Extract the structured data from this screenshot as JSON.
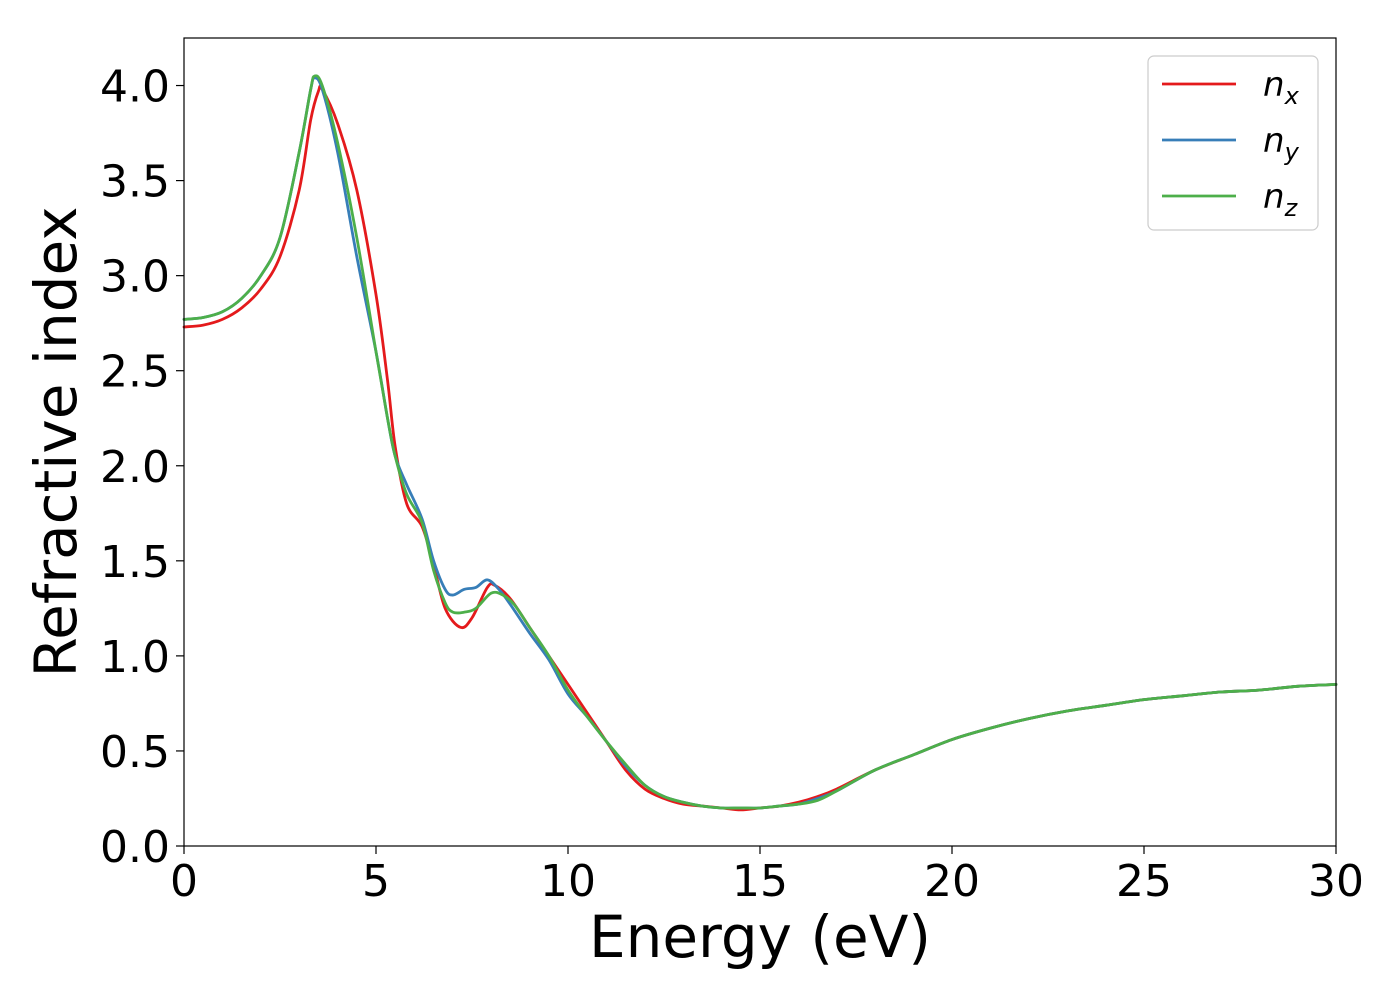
{
  "chart_data": {
    "type": "line",
    "title": "",
    "xlabel": "Energy (eV)",
    "ylabel": "Refractive index",
    "xlim": [
      0,
      30
    ],
    "ylim": [
      0,
      4.25
    ],
    "xticks": [
      0,
      5,
      10,
      15,
      20,
      25,
      30
    ],
    "xtick_labels": [
      "0",
      "5",
      "10",
      "15",
      "20",
      "25",
      "30"
    ],
    "yticks": [
      0.0,
      0.5,
      1.0,
      1.5,
      2.0,
      2.5,
      3.0,
      3.5,
      4.0
    ],
    "ytick_labels": [
      "0.0",
      "0.5",
      "1.0",
      "1.5",
      "2.0",
      "2.5",
      "3.0",
      "3.5",
      "4.0"
    ],
    "grid": false,
    "legend_position": "top-right",
    "series": [
      {
        "name": "n_x",
        "label_main": "n",
        "label_sub": "x",
        "color": "#e41a1c",
        "points": [
          [
            0,
            2.73
          ],
          [
            0.5,
            2.74
          ],
          [
            1,
            2.77
          ],
          [
            1.5,
            2.83
          ],
          [
            2,
            2.93
          ],
          [
            2.5,
            3.1
          ],
          [
            3,
            3.45
          ],
          [
            3.3,
            3.82
          ],
          [
            3.5,
            3.97
          ],
          [
            3.6,
            3.98
          ],
          [
            4,
            3.8
          ],
          [
            4.5,
            3.45
          ],
          [
            5,
            2.9
          ],
          [
            5.3,
            2.45
          ],
          [
            5.5,
            2.1
          ],
          [
            5.8,
            1.8
          ],
          [
            6.2,
            1.68
          ],
          [
            6.5,
            1.48
          ],
          [
            6.8,
            1.25
          ],
          [
            7.2,
            1.15
          ],
          [
            7.5,
            1.2
          ],
          [
            7.9,
            1.36
          ],
          [
            8.1,
            1.37
          ],
          [
            8.5,
            1.3
          ],
          [
            9,
            1.15
          ],
          [
            9.5,
            1.0
          ],
          [
            10,
            0.85
          ],
          [
            10.5,
            0.7
          ],
          [
            11,
            0.55
          ],
          [
            11.5,
            0.4
          ],
          [
            12,
            0.3
          ],
          [
            12.5,
            0.25
          ],
          [
            13,
            0.22
          ],
          [
            13.5,
            0.21
          ],
          [
            14,
            0.2
          ],
          [
            14.5,
            0.19
          ],
          [
            15,
            0.2
          ],
          [
            15.5,
            0.21
          ],
          [
            16,
            0.23
          ],
          [
            16.5,
            0.26
          ],
          [
            17,
            0.3
          ],
          [
            18,
            0.4
          ],
          [
            19,
            0.48
          ],
          [
            20,
            0.56
          ],
          [
            21,
            0.62
          ],
          [
            22,
            0.67
          ],
          [
            23,
            0.71
          ],
          [
            24,
            0.74
          ],
          [
            25,
            0.77
          ],
          [
            26,
            0.79
          ],
          [
            27,
            0.81
          ],
          [
            28,
            0.82
          ],
          [
            29,
            0.84
          ],
          [
            30,
            0.85
          ]
        ]
      },
      {
        "name": "n_y",
        "label_main": "n",
        "label_sub": "y",
        "color": "#377eb8",
        "points": [
          [
            0,
            2.77
          ],
          [
            0.5,
            2.78
          ],
          [
            1,
            2.81
          ],
          [
            1.5,
            2.88
          ],
          [
            2,
            3.0
          ],
          [
            2.5,
            3.2
          ],
          [
            3,
            3.65
          ],
          [
            3.3,
            3.98
          ],
          [
            3.4,
            4.04
          ],
          [
            3.6,
            3.98
          ],
          [
            4,
            3.65
          ],
          [
            4.5,
            3.1
          ],
          [
            5,
            2.6
          ],
          [
            5.3,
            2.25
          ],
          [
            5.5,
            2.05
          ],
          [
            5.8,
            1.9
          ],
          [
            6.2,
            1.72
          ],
          [
            6.5,
            1.5
          ],
          [
            6.8,
            1.35
          ],
          [
            7,
            1.32
          ],
          [
            7.3,
            1.35
          ],
          [
            7.6,
            1.36
          ],
          [
            7.9,
            1.4
          ],
          [
            8.2,
            1.35
          ],
          [
            8.5,
            1.27
          ],
          [
            9,
            1.12
          ],
          [
            9.5,
            0.98
          ],
          [
            10,
            0.8
          ],
          [
            10.5,
            0.68
          ],
          [
            11,
            0.55
          ],
          [
            11.5,
            0.42
          ],
          [
            12,
            0.32
          ],
          [
            12.5,
            0.26
          ],
          [
            13,
            0.23
          ],
          [
            13.5,
            0.21
          ],
          [
            14,
            0.2
          ],
          [
            14.5,
            0.2
          ],
          [
            15,
            0.2
          ],
          [
            15.5,
            0.21
          ],
          [
            16,
            0.22
          ],
          [
            16.5,
            0.25
          ],
          [
            17,
            0.29
          ],
          [
            18,
            0.4
          ],
          [
            19,
            0.48
          ],
          [
            20,
            0.56
          ],
          [
            21,
            0.62
          ],
          [
            22,
            0.67
          ],
          [
            23,
            0.71
          ],
          [
            24,
            0.74
          ],
          [
            25,
            0.77
          ],
          [
            26,
            0.79
          ],
          [
            27,
            0.81
          ],
          [
            28,
            0.82
          ],
          [
            29,
            0.84
          ],
          [
            30,
            0.85
          ]
        ]
      },
      {
        "name": "n_z",
        "label_main": "n",
        "label_sub": "z",
        "color": "#4daf4a",
        "points": [
          [
            0,
            2.77
          ],
          [
            0.5,
            2.78
          ],
          [
            1,
            2.81
          ],
          [
            1.5,
            2.88
          ],
          [
            2,
            3.0
          ],
          [
            2.5,
            3.2
          ],
          [
            3,
            3.65
          ],
          [
            3.3,
            3.98
          ],
          [
            3.4,
            4.05
          ],
          [
            3.6,
            4.0
          ],
          [
            4,
            3.7
          ],
          [
            4.5,
            3.2
          ],
          [
            5,
            2.6
          ],
          [
            5.3,
            2.25
          ],
          [
            5.5,
            2.05
          ],
          [
            5.8,
            1.85
          ],
          [
            6.2,
            1.7
          ],
          [
            6.5,
            1.45
          ],
          [
            6.8,
            1.28
          ],
          [
            7,
            1.23
          ],
          [
            7.3,
            1.23
          ],
          [
            7.6,
            1.25
          ],
          [
            8,
            1.33
          ],
          [
            8.3,
            1.32
          ],
          [
            8.6,
            1.27
          ],
          [
            9,
            1.15
          ],
          [
            9.5,
            1.0
          ],
          [
            10,
            0.82
          ],
          [
            10.5,
            0.68
          ],
          [
            11,
            0.55
          ],
          [
            11.5,
            0.43
          ],
          [
            12,
            0.32
          ],
          [
            12.5,
            0.26
          ],
          [
            13,
            0.23
          ],
          [
            13.5,
            0.21
          ],
          [
            14,
            0.2
          ],
          [
            14.5,
            0.2
          ],
          [
            15,
            0.2
          ],
          [
            15.5,
            0.21
          ],
          [
            16,
            0.22
          ],
          [
            16.5,
            0.24
          ],
          [
            17,
            0.29
          ],
          [
            18,
            0.4
          ],
          [
            19,
            0.48
          ],
          [
            20,
            0.56
          ],
          [
            21,
            0.62
          ],
          [
            22,
            0.67
          ],
          [
            23,
            0.71
          ],
          [
            24,
            0.74
          ],
          [
            25,
            0.77
          ],
          [
            26,
            0.79
          ],
          [
            27,
            0.81
          ],
          [
            28,
            0.82
          ],
          [
            29,
            0.84
          ],
          [
            30,
            0.85
          ]
        ]
      }
    ]
  }
}
